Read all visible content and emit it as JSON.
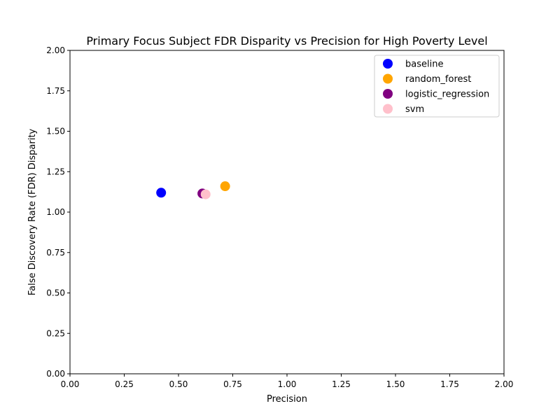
{
  "chart_data": {
    "type": "scatter",
    "title": "Primary Focus Subject FDR Disparity vs Precision for High Poverty Level",
    "xlabel": "Precision",
    "ylabel": "False Discovery Rate (FDR) Disparity",
    "xlim": [
      0,
      2
    ],
    "ylim": [
      0,
      2
    ],
    "xticks": [
      "0.00",
      "0.25",
      "0.50",
      "0.75",
      "1.00",
      "1.25",
      "1.50",
      "1.75",
      "2.00"
    ],
    "yticks": [
      "0.00",
      "0.25",
      "0.50",
      "0.75",
      "1.00",
      "1.25",
      "1.50",
      "1.75",
      "2.00"
    ],
    "grid": false,
    "legend_position": "top-right",
    "series": [
      {
        "name": "baseline",
        "color": "#0000ff",
        "x": [
          0.42
        ],
        "y": [
          1.12
        ]
      },
      {
        "name": "random_forest",
        "color": "#ffa500",
        "x": [
          0.715
        ],
        "y": [
          1.16
        ]
      },
      {
        "name": "logistic_regression",
        "color": "#800080",
        "x": [
          0.61
        ],
        "y": [
          1.115
        ]
      },
      {
        "name": "svm",
        "color": "#ffc0cb",
        "x": [
          0.625
        ],
        "y": [
          1.11
        ]
      }
    ]
  }
}
